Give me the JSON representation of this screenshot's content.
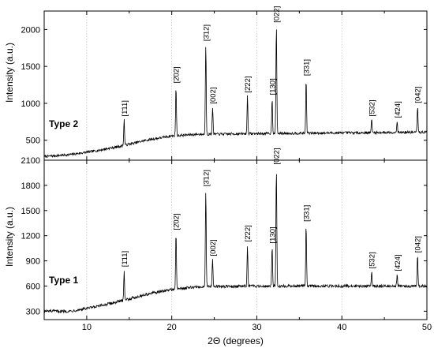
{
  "chart_data": [
    {
      "type": "line",
      "panel_label": "Type 2",
      "xlabel": "2Θ (degrees)",
      "ylabel": "Intensity (a.u.)",
      "xlim": [
        5,
        50
      ],
      "ylim": [
        230,
        2250
      ],
      "x_ticks": [
        10,
        20,
        30,
        40,
        50
      ],
      "y_ticks": [
        500,
        1000,
        1500,
        2000
      ],
      "grid": "vertical dotted",
      "baseline": [
        {
          "x": 5,
          "y": 280
        },
        {
          "x": 8,
          "y": 305
        },
        {
          "x": 11,
          "y": 355
        },
        {
          "x": 14,
          "y": 420
        },
        {
          "x": 17,
          "y": 500
        },
        {
          "x": 20,
          "y": 560
        },
        {
          "x": 23,
          "y": 580
        },
        {
          "x": 30,
          "y": 590
        },
        {
          "x": 40,
          "y": 600
        },
        {
          "x": 50,
          "y": 610
        }
      ],
      "peaks": [
        {
          "label": "[1̄11]",
          "x": 14.4,
          "y": 780
        },
        {
          "label": "[2̄02]",
          "x": 20.5,
          "y": 1230
        },
        {
          "label": "[3̄12]",
          "x": 24.0,
          "y": 1800
        },
        {
          "label": "[002]",
          "x": 24.8,
          "y": 950
        },
        {
          "label": "[2̄22]",
          "x": 28.9,
          "y": 1100
        },
        {
          "label": "[130]",
          "x": 31.8,
          "y": 1070
        },
        {
          "label": "[022]",
          "x": 32.3,
          "y": 2050
        },
        {
          "label": "[3̄31]",
          "x": 35.8,
          "y": 1330
        },
        {
          "label": "[5̄32]",
          "x": 43.5,
          "y": 780
        },
        {
          "label": "[4̄24]",
          "x": 46.5,
          "y": 760
        },
        {
          "label": "[042]",
          "x": 48.9,
          "y": 960
        }
      ]
    },
    {
      "type": "line",
      "panel_label": "Type 1",
      "xlabel": "2Θ (degrees)",
      "ylabel": "Intensity (a.u.)",
      "xlim": [
        5,
        50
      ],
      "ylim": [
        200,
        2100
      ],
      "x_ticks": [
        10,
        20,
        30,
        40,
        50
      ],
      "y_ticks": [
        300,
        600,
        900,
        1200,
        1500,
        1800,
        2100
      ],
      "grid": "vertical dotted",
      "baseline": [
        {
          "x": 5,
          "y": 300
        },
        {
          "x": 8,
          "y": 300
        },
        {
          "x": 11,
          "y": 350
        },
        {
          "x": 14,
          "y": 420
        },
        {
          "x": 17,
          "y": 500
        },
        {
          "x": 20,
          "y": 560
        },
        {
          "x": 23,
          "y": 590
        },
        {
          "x": 30,
          "y": 600
        },
        {
          "x": 40,
          "y": 600
        },
        {
          "x": 50,
          "y": 600
        }
      ],
      "peaks": [
        {
          "label": "[1̄11]",
          "x": 14.4,
          "y": 790
        },
        {
          "label": "[2̄02]",
          "x": 20.5,
          "y": 1230
        },
        {
          "label": "[3̄12]",
          "x": 24.0,
          "y": 1750
        },
        {
          "label": "[002]",
          "x": 24.8,
          "y": 920
        },
        {
          "label": "[2̄22]",
          "x": 28.9,
          "y": 1090
        },
        {
          "label": "[130]",
          "x": 31.8,
          "y": 1070
        },
        {
          "label": "[022]",
          "x": 32.3,
          "y": 2010
        },
        {
          "label": "[3̄31]",
          "x": 35.8,
          "y": 1330
        },
        {
          "label": "[5̄32]",
          "x": 43.5,
          "y": 770
        },
        {
          "label": "[4̄24]",
          "x": 46.5,
          "y": 740
        },
        {
          "label": "[042]",
          "x": 48.9,
          "y": 960
        }
      ]
    }
  ]
}
